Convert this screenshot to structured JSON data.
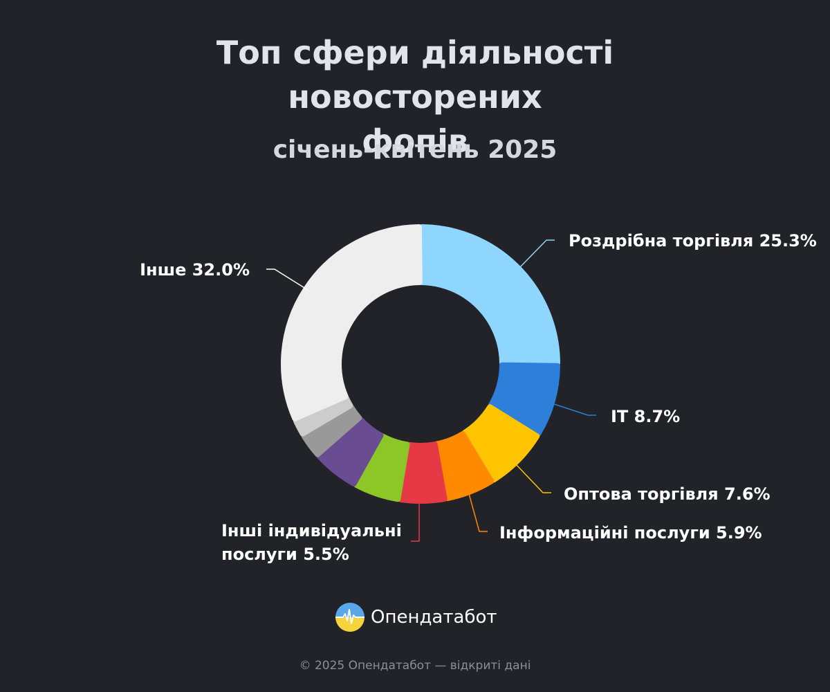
{
  "header": {
    "title_line1": "Топ сфери діяльності новосторених",
    "title_line2": "фопів",
    "subtitle": "січень-квітень 2025"
  },
  "chart_data": {
    "type": "pie",
    "variant": "donut",
    "title": "Топ сфери діяльності новосторених фопів",
    "subtitle": "січень-квітень 2025",
    "unit": "%",
    "legend": "none",
    "slices": [
      {
        "label": "Роздрібна торгівля",
        "value": 25.3,
        "color": "#8fd6ff",
        "label_text": "Роздрібна торгівля 25.3%"
      },
      {
        "label": "IT",
        "value": 8.7,
        "color": "#2e7fd9",
        "label_text": "IT 8.7%"
      },
      {
        "label": "Оптова торгівля",
        "value": 7.6,
        "color": "#ffc400",
        "label_text": "Оптова торгівля 7.6%"
      },
      {
        "label": "Інформаційні послуги",
        "value": 5.9,
        "color": "#ff8a00",
        "label_text": "Інформаційні послуги 5.9%"
      },
      {
        "label": "Інші індивідуальні послуги",
        "value": 5.5,
        "color": "#e63946",
        "label_lines": [
          "Інші індивідуальні",
          "послуги 5.5%"
        ]
      },
      {
        "label": "",
        "value": 5.5,
        "color": "#8cc727"
      },
      {
        "label": "",
        "value": 5.5,
        "color": "#6a4c93"
      },
      {
        "label": "",
        "value": 3.0,
        "color": "#999999"
      },
      {
        "label": "",
        "value": 2.0,
        "color": "#cccccc"
      },
      {
        "label": "Інше",
        "value": 32.0,
        "color": "#eeeeee",
        "label_text": "Інше 32.0%"
      }
    ]
  },
  "brand": {
    "name": "Опендатабот",
    "logo_icon": "opendatabot-logo-icon",
    "logo_colors": [
      "#5aa7e8",
      "#f5d33a"
    ]
  },
  "footer": {
    "text": "© 2025 Опендатабот — відкриті дані"
  }
}
